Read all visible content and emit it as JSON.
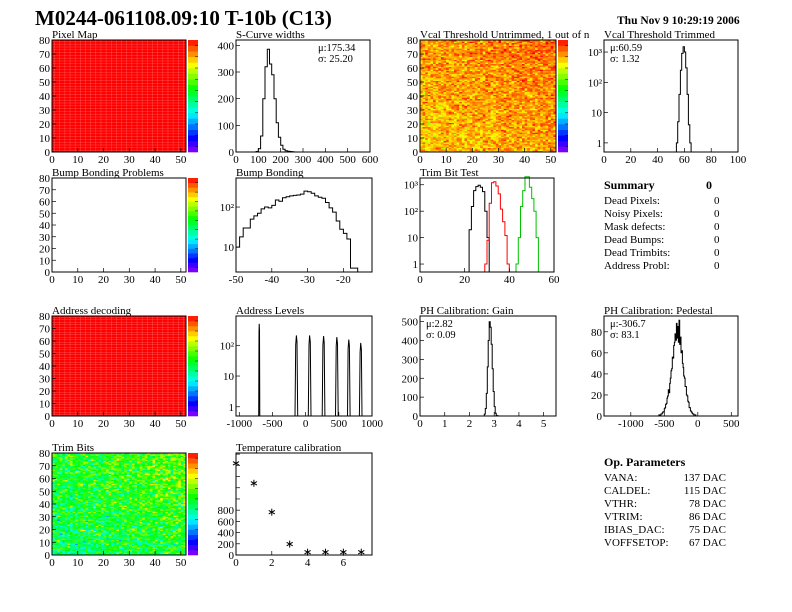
{
  "header": {
    "title": "M0244-061108.09:10 T-10b (C13)",
    "date": "Thu Nov  9 10:29:19 2006"
  },
  "colors": {
    "frame": "#000000",
    "hist": "#000000",
    "trim_series": [
      "#000000",
      "#ff0000",
      "#00c000"
    ],
    "palette": "rainbow purple-to-red"
  },
  "summary": {
    "title": "Summary",
    "total": "0",
    "rows": [
      {
        "label": "Dead Pixels:",
        "value": "0"
      },
      {
        "label": "Noisy Pixels:",
        "value": "0"
      },
      {
        "label": "Mask defects:",
        "value": "0"
      },
      {
        "label": "Dead Bumps:",
        "value": "0"
      },
      {
        "label": "Dead Trimbits:",
        "value": "0"
      },
      {
        "label": "Address Probl:",
        "value": "0"
      }
    ]
  },
  "op_params": {
    "title": "Op. Parameters",
    "rows": [
      {
        "label": "VANA:",
        "value": "137 DAC"
      },
      {
        "label": "CALDEL:",
        "value": "115 DAC"
      },
      {
        "label": "VTHR:",
        "value": "78 DAC"
      },
      {
        "label": "VTRIM:",
        "value": "86 DAC"
      },
      {
        "label": "IBIAS_DAC:",
        "value": "75 DAC"
      },
      {
        "label": "VOFFSETOP:",
        "value": "67 DAC"
      }
    ]
  },
  "chart_data": [
    {
      "id": "pixel_map",
      "type": "heatmap",
      "title": "Pixel Map",
      "xlim": [
        0,
        52
      ],
      "ylim": [
        0,
        80
      ],
      "xticks": [
        0,
        10,
        20,
        30,
        40,
        50
      ],
      "yticks": [
        0,
        10,
        20,
        30,
        40,
        50,
        60,
        70,
        80
      ],
      "zlim": [
        0,
        10
      ],
      "uniform_value": 10
    },
    {
      "id": "scurve",
      "type": "bar",
      "title": "S-Curve widths",
      "xlim": [
        0,
        600
      ],
      "ylim": [
        0,
        420
      ],
      "xticks": [
        0,
        100,
        200,
        300,
        400,
        500,
        600
      ],
      "yticks": [
        0,
        100,
        200,
        300,
        400
      ],
      "stats": [
        "μ:175.34",
        "σ: 25.20"
      ],
      "stats_pos": "top-right",
      "series": [
        {
          "x0": 90,
          "bw": 10,
          "counts": [
            2,
            12,
            60,
            200,
            320,
            385,
            330,
            290,
            200,
            110,
            55,
            25,
            10,
            5,
            3,
            2,
            1
          ]
        }
      ]
    },
    {
      "id": "vcal_untrimmed",
      "type": "heatmap",
      "title": "Vcal Threshold Untrimmed, 1 out of n",
      "xlim": [
        0,
        52
      ],
      "ylim": [
        0,
        80
      ],
      "xticks": [
        0,
        10,
        20,
        30,
        40,
        50
      ],
      "yticks": [
        0,
        10,
        20,
        30,
        40,
        50,
        60,
        70,
        80
      ],
      "zlim": [
        0,
        120
      ],
      "typical_value": 104,
      "spread": 9
    },
    {
      "id": "vcal_trimmed",
      "type": "bar",
      "title": "Vcal Threshold Trimmed",
      "log_y": true,
      "xlim": [
        0,
        100
      ],
      "ylim": [
        0.5,
        2500
      ],
      "xticks": [
        0,
        20,
        40,
        60,
        80,
        100
      ],
      "yticks": [
        1,
        10,
        100,
        1000
      ],
      "stats": [
        "μ:60.59",
        "σ: 1.32"
      ],
      "stats_pos": "top-left",
      "series": [
        {
          "x0": 54,
          "bw": 1,
          "counts": [
            1,
            5,
            40,
            250,
            900,
            1500,
            1000,
            300,
            40,
            4,
            1
          ]
        }
      ]
    },
    {
      "id": "bump_problems",
      "type": "heatmap",
      "title": "Bump Bonding Problems",
      "xlim": [
        0,
        52
      ],
      "ylim": [
        0,
        80
      ],
      "xticks": [
        0,
        10,
        20,
        30,
        40,
        50
      ],
      "yticks": [
        0,
        10,
        20,
        30,
        40,
        50,
        60,
        70,
        80
      ],
      "zlim": [
        0,
        1
      ],
      "empty": true
    },
    {
      "id": "bump_bonding",
      "type": "bar",
      "title": "Bump Bonding",
      "log_y": true,
      "xlim": [
        -50,
        -12
      ],
      "ylim": [
        2.4,
        530
      ],
      "xticks": [
        -50,
        -40,
        -30,
        -20
      ],
      "yticks": [
        10,
        100
      ],
      "series": [
        {
          "x0": -50,
          "bw": 1,
          "counts": [
            10,
            18,
            30,
            30,
            50,
            60,
            70,
            90,
            100,
            95,
            110,
            150,
            140,
            170,
            180,
            190,
            195,
            200,
            210,
            250,
            240,
            220,
            190,
            175,
            165,
            130,
            95,
            75,
            45,
            28,
            22,
            16,
            3,
            3
          ]
        }
      ]
    },
    {
      "id": "trim_bit_test",
      "type": "bar",
      "title": "Trim Bit Test",
      "log_y": true,
      "xlim": [
        0,
        60
      ],
      "ylim": [
        0.5,
        1800
      ],
      "xticks": [
        0,
        20,
        40,
        60
      ],
      "yticks": [
        1,
        10,
        100,
        1000
      ],
      "series": [
        {
          "color": "#000000",
          "x0": 22,
          "bw": 1,
          "counts": [
            20,
            150,
            600,
            850,
            950,
            800,
            550,
            100,
            10
          ]
        },
        {
          "color": "#ff0000",
          "x0": 29,
          "bw": 1,
          "counts": [
            1,
            8,
            200,
            1200,
            1300,
            900,
            450,
            120,
            40,
            12,
            1
          ]
        },
        {
          "color": "#00c000",
          "x0": 43,
          "bw": 1,
          "counts": [
            1,
            10,
            150,
            600,
            2000,
            2000,
            800,
            300,
            100,
            10
          ]
        }
      ]
    },
    {
      "id": "address_decoding",
      "type": "heatmap",
      "title": "Address decoding",
      "xlim": [
        0,
        52
      ],
      "ylim": [
        0,
        80
      ],
      "xticks": [
        0,
        10,
        20,
        30,
        40,
        50
      ],
      "yticks": [
        0,
        10,
        20,
        30,
        40,
        50,
        60,
        70,
        80
      ],
      "zlim": [
        0,
        1
      ],
      "uniform_value": 1
    },
    {
      "id": "address_levels",
      "type": "bar",
      "title": "Address Levels",
      "log_y": true,
      "xlim": [
        -1050,
        1000
      ],
      "ylim": [
        0.5,
        900
      ],
      "xticks": [
        -1000,
        -500,
        0,
        500,
        1000
      ],
      "yticks": [
        1,
        10,
        100
      ],
      "peaks": [
        {
          "x": -700,
          "height": 500,
          "width": 16
        },
        {
          "x": -140,
          "height": 210,
          "width": 40
        },
        {
          "x": 60,
          "height": 210,
          "width": 40
        },
        {
          "x": 270,
          "height": 200,
          "width": 40
        },
        {
          "x": 470,
          "height": 185,
          "width": 40
        },
        {
          "x": 650,
          "height": 155,
          "width": 40
        },
        {
          "x": 830,
          "height": 120,
          "width": 40
        }
      ]
    },
    {
      "id": "ph_gain",
      "type": "bar",
      "title": "PH Calibration: Gain",
      "xlim": [
        0,
        5.5
      ],
      "ylim": [
        0,
        530
      ],
      "xticks": [
        0,
        1,
        2,
        3,
        4,
        5
      ],
      "yticks": [
        0,
        100,
        200,
        300,
        400,
        500
      ],
      "stats": [
        "μ:2.82",
        "σ: 0.09"
      ],
      "stats_pos": "top-left",
      "series": [
        {
          "x0": 2.6,
          "bw": 0.04,
          "counts": [
            10,
            40,
            120,
            260,
            400,
            500,
            470,
            380,
            250,
            130,
            50,
            15,
            3,
            1
          ]
        }
      ]
    },
    {
      "id": "ph_pedestal",
      "type": "bar",
      "title": "PH Calibration: Pedestal",
      "xlim": [
        -1400,
        600
      ],
      "ylim": [
        0,
        95
      ],
      "xticks": [
        -1000,
        -500,
        0,
        500
      ],
      "yticks": [
        0,
        20,
        40,
        60,
        80
      ],
      "stats": [
        "μ:-306.7",
        "σ: 83.1"
      ],
      "stats_pos": "top-left",
      "series": [
        {
          "x0": -600,
          "bw": 10,
          "counts": [
            0,
            0,
            1,
            0,
            1,
            2,
            2,
            3,
            4,
            4,
            7,
            8,
            11,
            12,
            17,
            19,
            25,
            22,
            31,
            36,
            43,
            45,
            56,
            55,
            67,
            70,
            78,
            72,
            88,
            74,
            85,
            70,
            91,
            68,
            75,
            60,
            62,
            50,
            46,
            38,
            36,
            28,
            28,
            20,
            19,
            14,
            13,
            8,
            8,
            5,
            4,
            3,
            2,
            2,
            1,
            1,
            1,
            0,
            0,
            0
          ]
        }
      ]
    },
    {
      "id": "trim_bits",
      "type": "heatmap",
      "title": "Trim Bits",
      "xlim": [
        0,
        52
      ],
      "ylim": [
        0,
        80
      ],
      "xticks": [
        0,
        10,
        20,
        30,
        40,
        50
      ],
      "yticks": [
        0,
        10,
        20,
        30,
        40,
        50,
        60,
        70,
        80
      ],
      "zlim": [
        0,
        16
      ],
      "typical_value": 9,
      "spread": 2.2
    },
    {
      "id": "temperature",
      "type": "scatter",
      "title": "Temperature calibration",
      "xlim": [
        0,
        7.6
      ],
      "ylim": [
        0,
        1820
      ],
      "xticks": [
        0,
        2,
        4,
        6
      ],
      "yticks": [
        0,
        200,
        400,
        600,
        800
      ],
      "minor_yticks": [
        1000,
        1200,
        1400,
        1600,
        1800
      ],
      "marker": "star",
      "points": {
        "x": [
          0,
          1,
          2,
          3,
          4,
          5,
          6,
          7
        ],
        "y": [
          1636,
          1280,
          764,
          195,
          50,
          50,
          50,
          50
        ]
      }
    }
  ]
}
